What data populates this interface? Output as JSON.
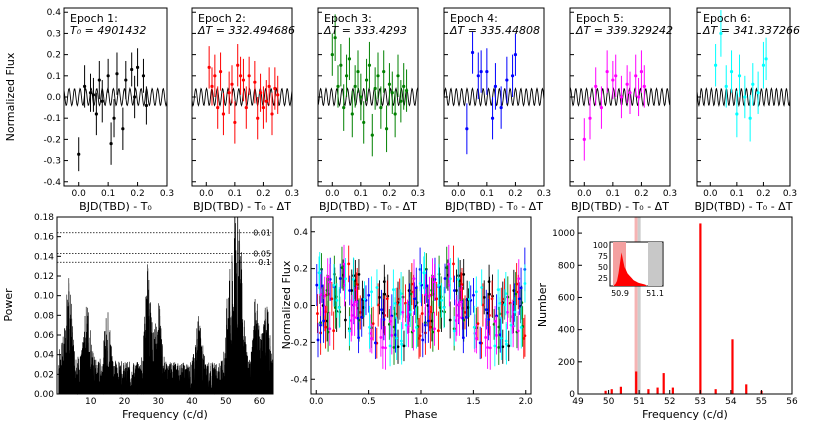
{
  "chart_data": [
    {
      "type": "scatter",
      "epoch": "Epoch 1:",
      "subtitle": "T₀ = 4901432",
      "color": "#000000",
      "xlabel": "BJD(TBD) - T₀",
      "ylabel": "Normalized Flux",
      "xlim": [
        -0.05,
        0.3
      ],
      "ylim": [
        -0.42,
        0.42
      ],
      "xticks": [
        "0.0",
        "0.1",
        "0.2",
        "0.3"
      ],
      "yticks": [
        "0.4",
        "0.3",
        "0.2",
        "0.1",
        "0.0",
        "-0.1",
        "-0.2",
        "-0.3",
        "-0.4"
      ],
      "x": [
        0.0,
        0.02,
        0.04,
        0.05,
        0.06,
        0.07,
        0.08,
        0.1,
        0.11,
        0.12,
        0.13,
        0.15,
        0.16,
        0.18,
        0.19,
        0.2,
        0.22,
        0.23
      ],
      "y": [
        -0.27,
        0.05,
        0.02,
        0.01,
        -0.08,
        0.08,
        -0.02,
        0.1,
        -0.22,
        -0.1,
        0.11,
        -0.15,
        0.08,
        0.13,
        0.0,
        0.14,
        0.1,
        -0.04
      ],
      "err": [
        0.08,
        0.1,
        0.09,
        0.08,
        0.1,
        0.09,
        0.1,
        0.08,
        0.1,
        0.09,
        0.1,
        0.1,
        0.09,
        0.08,
        0.1,
        0.09,
        0.08,
        0.09
      ]
    },
    {
      "type": "scatter",
      "epoch": "Epoch 2:",
      "subtitle": "ΔT = 332.494686",
      "color": "#ff0000",
      "xlabel": "BJD(TBD) - T₀ - ΔT",
      "xlim": [
        -0.05,
        0.3
      ],
      "ylim": [
        -0.42,
        0.42
      ],
      "xticks": [
        "0.0",
        "0.1",
        "0.2",
        "0.3"
      ],
      "x": [
        0.01,
        0.02,
        0.03,
        0.04,
        0.05,
        0.06,
        0.08,
        0.09,
        0.1,
        0.11,
        0.12,
        0.13,
        0.14,
        0.15,
        0.17,
        0.18,
        0.19,
        0.2,
        0.21,
        0.22,
        0.23,
        0.24,
        0.25
      ],
      "y": [
        0.14,
        0.05,
        0.1,
        -0.05,
        0.12,
        -0.08,
        0.02,
        0.06,
        -0.12,
        0.15,
        0.1,
        0.08,
        -0.05,
        0.1,
        0.07,
        -0.1,
        0.02,
        -0.05,
        -0.02,
        0.05,
        -0.08,
        0.04,
        0.01
      ],
      "err": [
        0.1,
        0.09,
        0.1,
        0.1,
        0.09,
        0.1,
        0.1,
        0.09,
        0.1,
        0.1,
        0.09,
        0.1,
        0.1,
        0.09,
        0.1,
        0.1,
        0.09,
        0.1,
        0.1,
        0.09,
        0.1,
        0.1,
        0.09
      ]
    },
    {
      "type": "scatter",
      "epoch": "Epoch 3:",
      "subtitle": "ΔT = 333.4293",
      "color": "#008000",
      "xlabel": "BJD(TBD) - T₀ - ΔT",
      "xlim": [
        -0.05,
        0.3
      ],
      "ylim": [
        -0.42,
        0.42
      ],
      "xticks": [
        "0.0",
        "0.1",
        "0.2",
        "0.3"
      ],
      "x": [
        0.0,
        0.01,
        0.02,
        0.03,
        0.04,
        0.05,
        0.06,
        0.07,
        0.08,
        0.09,
        0.1,
        0.11,
        0.12,
        0.13,
        0.14,
        0.15,
        0.16,
        0.17,
        0.18,
        0.19,
        0.2,
        0.21,
        0.22,
        0.23,
        0.24,
        0.25,
        0.26
      ],
      "y": [
        0.2,
        0.28,
        0.05,
        0.15,
        -0.05,
        0.1,
        0.18,
        -0.08,
        0.05,
        0.12,
        0.0,
        -0.12,
        0.08,
        0.15,
        -0.18,
        0.04,
        0.1,
        -0.05,
        0.12,
        -0.15,
        0.06,
        0.02,
        -0.08,
        0.1,
        -0.02,
        0.05,
        0.03
      ],
      "err": [
        0.1,
        0.11,
        0.1,
        0.1,
        0.11,
        0.1,
        0.1,
        0.11,
        0.1,
        0.1,
        0.11,
        0.1,
        0.1,
        0.11,
        0.1,
        0.1,
        0.11,
        0.1,
        0.1,
        0.11,
        0.1,
        0.1,
        0.11,
        0.1,
        0.1,
        0.11,
        0.1
      ]
    },
    {
      "type": "scatter",
      "epoch": "Epoch 4:",
      "subtitle": "ΔT = 335.44808",
      "color": "#0000ff",
      "xlabel": "BJD(TBD) - T₀ - ΔT",
      "xlim": [
        -0.05,
        0.3
      ],
      "ylim": [
        -0.42,
        0.42
      ],
      "xticks": [
        "0.0",
        "0.1",
        "0.2",
        "0.3"
      ],
      "x": [
        0.03,
        0.05,
        0.07,
        0.08,
        0.1,
        0.12,
        0.13,
        0.15,
        0.17,
        0.19,
        0.2
      ],
      "y": [
        -0.15,
        0.21,
        0.1,
        0.12,
        0.12,
        -0.1,
        0.05,
        -0.05,
        0.08,
        0.1,
        0.2
      ],
      "err": [
        0.12,
        0.1,
        0.11,
        0.1,
        0.11,
        0.1,
        0.11,
        0.1,
        0.11,
        0.1,
        0.1
      ]
    },
    {
      "type": "scatter",
      "epoch": "Epoch 5:",
      "subtitle": "ΔT = 339.329242",
      "color": "#ff00ff",
      "xlabel": "BJD(TBD) - T₀ - ΔT",
      "xlim": [
        -0.05,
        0.3
      ],
      "ylim": [
        -0.42,
        0.42
      ],
      "xticks": [
        "0.0",
        "0.1",
        "0.2",
        "0.3"
      ],
      "x": [
        0.0,
        0.02,
        0.04,
        0.06,
        0.08,
        0.1,
        0.11,
        0.13,
        0.15,
        0.16,
        0.18,
        0.19,
        0.2,
        0.21
      ],
      "y": [
        -0.2,
        -0.1,
        0.05,
        -0.05,
        0.12,
        0.08,
        0.1,
        0.0,
        0.06,
        0.02,
        0.1,
        0.0,
        0.12,
        0.05
      ],
      "err": [
        0.1,
        0.1,
        0.09,
        0.1,
        0.1,
        0.09,
        0.1,
        0.1,
        0.09,
        0.1,
        0.1,
        0.09,
        0.1,
        0.1
      ]
    },
    {
      "type": "scatter",
      "epoch": "Epoch 6:",
      "subtitle": "ΔT = 341.337266",
      "color": "#00ffff",
      "xlabel": "BJD(TBD) - T₀ - ΔT",
      "xlim": [
        -0.05,
        0.3
      ],
      "ylim": [
        -0.42,
        0.42
      ],
      "xticks": [
        "0.0",
        "0.1",
        "0.2",
        "0.3"
      ],
      "x": [
        0.02,
        0.04,
        0.06,
        0.08,
        0.1,
        0.11,
        0.13,
        0.15,
        0.16,
        0.18,
        0.2,
        0.21
      ],
      "y": [
        0.15,
        0.3,
        0.05,
        0.12,
        -0.08,
        0.1,
        0.0,
        -0.1,
        0.06,
        0.02,
        0.15,
        0.18
      ],
      "err": [
        0.1,
        0.11,
        0.1,
        0.1,
        0.11,
        0.1,
        0.1,
        0.11,
        0.1,
        0.1,
        0.11,
        0.1
      ]
    },
    {
      "type": "line",
      "name": "periodogram",
      "xlabel": "Frequency (c/d)",
      "ylabel": "Power",
      "xlim": [
        0,
        64
      ],
      "ylim": [
        0,
        0.18
      ],
      "xticks": [
        "10",
        "20",
        "30",
        "40",
        "50",
        "60"
      ],
      "yticks": [
        "0.18",
        "0.16",
        "0.14",
        "0.12",
        "0.10",
        "0.08",
        "0.06",
        "0.04",
        "0.02",
        "0.00"
      ],
      "fap_lines": [
        {
          "label": "0.01",
          "value": 0.164
        },
        {
          "label": "0.05",
          "value": 0.143
        },
        {
          "label": "0.1",
          "value": 0.134
        }
      ],
      "peaks": [
        {
          "x": 3.5,
          "y": 0.078
        },
        {
          "x": 9,
          "y": 0.06
        },
        {
          "x": 15,
          "y": 0.055
        },
        {
          "x": 27,
          "y": 0.106
        },
        {
          "x": 30,
          "y": 0.065
        },
        {
          "x": 42,
          "y": 0.05
        },
        {
          "x": 51,
          "y": 0.085
        },
        {
          "x": 53,
          "y": 0.146
        },
        {
          "x": 54.5,
          "y": 0.1
        },
        {
          "x": 59,
          "y": 0.075
        },
        {
          "x": 62,
          "y": 0.065
        }
      ]
    },
    {
      "type": "scatter",
      "name": "phase-folded",
      "xlabel": "Phase",
      "ylabel": "Normalized Flux",
      "xlim": [
        -0.05,
        2.05
      ],
      "ylim": [
        -0.48,
        0.48
      ],
      "xticks": [
        "0.0",
        "0.5",
        "1.0",
        "1.5",
        "2.0"
      ],
      "yticks": [
        "0.4",
        "0.2",
        "0.0",
        "-0.2",
        "-0.4"
      ]
    },
    {
      "type": "bar",
      "name": "bootstrap-histogram",
      "xlabel": "Frequency (c/d)",
      "ylabel": "Number",
      "xlim": [
        49,
        56
      ],
      "ylim": [
        0,
        1100
      ],
      "xticks": [
        "49",
        "50",
        "51",
        "52",
        "53",
        "54",
        "55",
        "56"
      ],
      "yticks": [
        "1000",
        "800",
        "600",
        "400",
        "200",
        "0"
      ],
      "peaks": [
        {
          "x": 49.9,
          "y": 20
        },
        {
          "x": 50.1,
          "y": 30
        },
        {
          "x": 50.4,
          "y": 45
        },
        {
          "x": 50.9,
          "y": 140
        },
        {
          "x": 51.3,
          "y": 30
        },
        {
          "x": 51.6,
          "y": 40
        },
        {
          "x": 51.8,
          "y": 130
        },
        {
          "x": 52.1,
          "y": 40
        },
        {
          "x": 53.0,
          "y": 1060
        },
        {
          "x": 53.5,
          "y": 30
        },
        {
          "x": 54.05,
          "y": 340
        },
        {
          "x": 54.5,
          "y": 60
        },
        {
          "x": 55.0,
          "y": 20
        }
      ],
      "inset": {
        "xticks": [
          "50.9",
          "51.1"
        ],
        "yticks": [
          "100",
          "75",
          "50",
          "25"
        ]
      }
    }
  ]
}
